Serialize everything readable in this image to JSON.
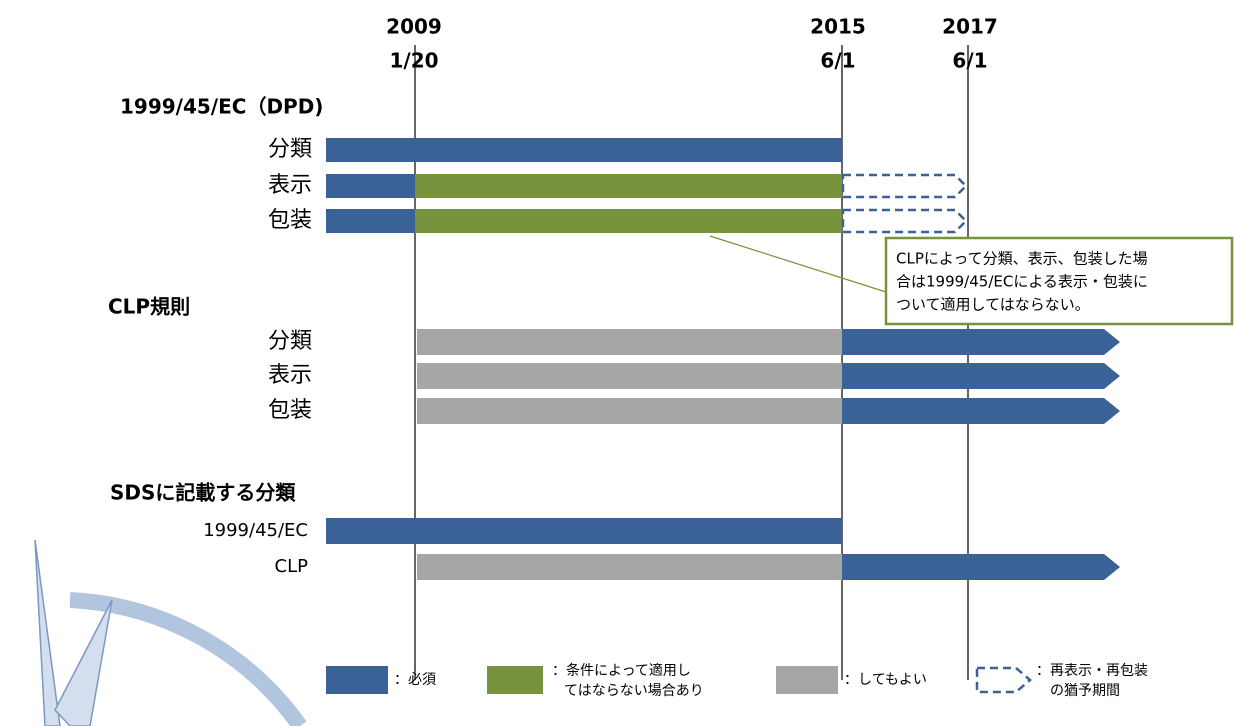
{
  "dates": [
    {
      "year": "2009",
      "day": "1/20"
    },
    {
      "year": "2015",
      "day": "6/1"
    },
    {
      "year": "2017",
      "day": "6/1"
    }
  ],
  "sections": [
    {
      "title": "1999/45/EC（DPD)",
      "rows": [
        "分類",
        "表示",
        "包装"
      ]
    },
    {
      "title": "CLP規則",
      "rows": [
        "分類",
        "表示",
        "包装"
      ]
    },
    {
      "title": "SDSに記載する分類",
      "rows": [
        "1999/45/EC",
        "CLP"
      ]
    }
  ],
  "callout": {
    "lines": [
      "CLPによって分類、表示、包装した場",
      "合は1999/45/ECによる表示・包装に",
      "ついて適用してはならない。"
    ]
  },
  "legend": [
    {
      "lines": [
        "：必須"
      ]
    },
    {
      "lines": [
        "：条件によって適用し",
        "てはならない場合あり"
      ]
    },
    {
      "lines": [
        "：してもよい"
      ]
    },
    {
      "lines": [
        "：再表示・再包装",
        "の猶予期間"
      ]
    }
  ]
}
